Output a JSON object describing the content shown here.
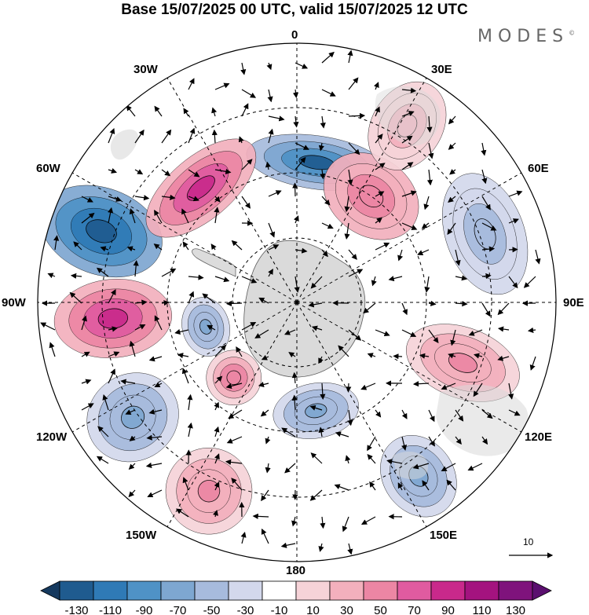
{
  "title": "Base 15/07/2025 00 UTC, valid 15/07/2025 12 UTC",
  "brand": "MODES",
  "brand_mark": "©",
  "map": {
    "projection": "south polar stereographic",
    "longitude_labels": [
      "0",
      "30E",
      "60E",
      "90E",
      "120E",
      "150E",
      "180",
      "150W",
      "120W",
      "90W",
      "60W",
      "30W"
    ],
    "reference_vector_label": "10",
    "colors": {
      "land": "#d9d9d9",
      "graticule": "#000000"
    },
    "anomaly_centers": [
      {
        "name": "center-negative-0",
        "lon": 8,
        "value": -110
      },
      {
        "name": "center-positive-30e",
        "lon": 35,
        "value": 70
      },
      {
        "name": "center-positive-40e-north",
        "lon": 32,
        "value": 40
      },
      {
        "name": "center-negative-70e",
        "lon": 70,
        "value": -40
      },
      {
        "name": "center-positive-110e",
        "lon": 110,
        "value": 55
      },
      {
        "name": "center-negative-150e",
        "lon": 145,
        "value": -60
      },
      {
        "name": "center-negative-170e",
        "lon": 170,
        "value": -55
      },
      {
        "name": "center-positive-155w",
        "lon": -155,
        "value": 60
      },
      {
        "name": "center-positive-140w",
        "lon": -140,
        "value": 65
      },
      {
        "name": "center-negative-125w",
        "lon": -125,
        "value": -50
      },
      {
        "name": "center-negative-105w",
        "lon": -105,
        "value": -50
      },
      {
        "name": "center-positive-95w",
        "lon": -95,
        "value": 95
      },
      {
        "name": "center-negative-70w",
        "lon": -70,
        "value": -115
      },
      {
        "name": "center-positive-40w",
        "lon": -40,
        "value": 95
      }
    ]
  },
  "colorbar": {
    "labels": [
      "-130",
      "-110",
      "-90",
      "-70",
      "-50",
      "-30",
      "-10",
      "10",
      "30",
      "50",
      "70",
      "90",
      "110",
      "130"
    ],
    "colors": [
      "#15395e",
      "#1f5b8f",
      "#2f7ab6",
      "#4f92c6",
      "#7ea7d1",
      "#a7bbdd",
      "#d3d8ec",
      "#ffffff",
      "#f6d3d8",
      "#f3b0bd",
      "#ec86a4",
      "#e05ba0",
      "#c9298b",
      "#a4137f",
      "#7f137c",
      "#5b0f6f"
    ]
  }
}
